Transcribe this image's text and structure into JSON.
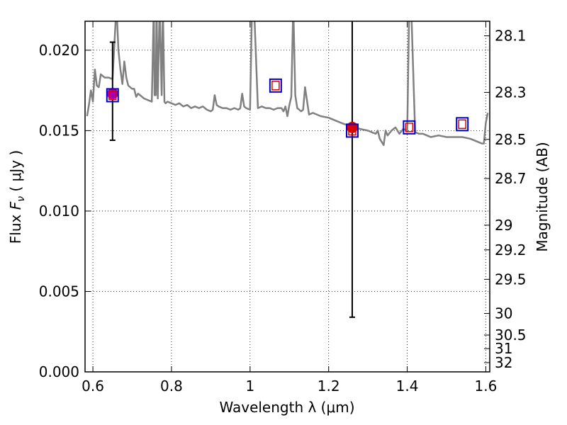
{
  "chart_data": {
    "type": "line",
    "title": "",
    "xlabel": "Wavelength  λ (μm)",
    "ylabel": "Flux  F_ν  ( μJy )",
    "ylabel_parts": {
      "pre": "Flux  ",
      "var": "F",
      "sub": "ν",
      "post": "  ( μJy )"
    },
    "y2label": "Magnitude (AB)",
    "xlim": [
      0.58,
      1.61
    ],
    "ylim": [
      0.0,
      0.0218
    ],
    "grid": true,
    "x_ticks": [
      0.6,
      0.8,
      1.0,
      1.2,
      1.4,
      1.6
    ],
    "x_tick_labels": [
      "0.6",
      "0.8",
      "1",
      "1.2",
      "1.4",
      "1.6"
    ],
    "y_ticks": [
      0.0,
      0.005,
      0.01,
      0.015,
      0.02
    ],
    "y_tick_labels": [
      "0.000",
      "0.005",
      "0.010",
      "0.015",
      "0.020"
    ],
    "mag_ticks": [
      28.1,
      28.3,
      28.5,
      28.7,
      29,
      29.2,
      29.5,
      30,
      30.5,
      31,
      32
    ],
    "mag_tick_labels": [
      "28.1",
      "28.3",
      "28.5",
      "28.7",
      "29",
      "29.2",
      "29.5",
      "30",
      "30.5",
      "31",
      "32"
    ],
    "colors": {
      "sed": "#808080",
      "observed": "#dd0000",
      "marker_box": "#0000cc",
      "model": "#dd0000",
      "errorbar": "#000000",
      "purple_point": "#aa00aa"
    },
    "series": [
      {
        "kind": "sed_line",
        "x": [
          0.585,
          0.59,
          0.595,
          0.6,
          0.605,
          0.61,
          0.615,
          0.62,
          0.63,
          0.64,
          0.65,
          0.66,
          0.665,
          0.67,
          0.675,
          0.68,
          0.685,
          0.69,
          0.7,
          0.705,
          0.71,
          0.715,
          0.72,
          0.725,
          0.73,
          0.74,
          0.75,
          0.755,
          0.757,
          0.76,
          0.762,
          0.765,
          0.77,
          0.775,
          0.778,
          0.782,
          0.785,
          0.79,
          0.8,
          0.81,
          0.82,
          0.83,
          0.84,
          0.85,
          0.86,
          0.87,
          0.88,
          0.89,
          0.9,
          0.905,
          0.91,
          0.915,
          0.92,
          0.93,
          0.94,
          0.95,
          0.96,
          0.97,
          0.975,
          0.98,
          0.985,
          0.99,
          1.0,
          1.005,
          1.01,
          1.02,
          1.03,
          1.04,
          1.05,
          1.06,
          1.07,
          1.08,
          1.085,
          1.09,
          1.095,
          1.1,
          1.105,
          1.11,
          1.115,
          1.12,
          1.13,
          1.135,
          1.14,
          1.15,
          1.16,
          1.18,
          1.2,
          1.22,
          1.24,
          1.26,
          1.28,
          1.3,
          1.31,
          1.32,
          1.325,
          1.33,
          1.34,
          1.345,
          1.35,
          1.36,
          1.37,
          1.38,
          1.39,
          1.4,
          1.405,
          1.41,
          1.42,
          1.43,
          1.44,
          1.45,
          1.46,
          1.48,
          1.5,
          1.52,
          1.54,
          1.56,
          1.58,
          1.59,
          1.595,
          1.6,
          1.605
        ],
        "y": [
          0.0159,
          0.0166,
          0.0175,
          0.0168,
          0.0188,
          0.0178,
          0.0177,
          0.0185,
          0.0183,
          0.0183,
          0.0182,
          0.0228,
          0.02,
          0.0188,
          0.0179,
          0.0193,
          0.0183,
          0.0178,
          0.0176,
          0.0176,
          0.0171,
          0.0173,
          0.0172,
          0.0171,
          0.017,
          0.0169,
          0.0168,
          0.0228,
          0.0172,
          0.0172,
          0.0228,
          0.017,
          0.0228,
          0.0172,
          0.0228,
          0.0168,
          0.0167,
          0.0168,
          0.0167,
          0.0166,
          0.0167,
          0.0165,
          0.0166,
          0.0164,
          0.0165,
          0.0164,
          0.0165,
          0.0163,
          0.0162,
          0.0163,
          0.0172,
          0.0166,
          0.0165,
          0.0164,
          0.0164,
          0.0163,
          0.0164,
          0.0163,
          0.0164,
          0.0173,
          0.0165,
          0.0164,
          0.0163,
          0.0228,
          0.0228,
          0.0164,
          0.0165,
          0.0164,
          0.0164,
          0.0163,
          0.0164,
          0.0164,
          0.0162,
          0.0165,
          0.0159,
          0.0166,
          0.0171,
          0.0228,
          0.0172,
          0.0164,
          0.0162,
          0.0163,
          0.0177,
          0.016,
          0.0161,
          0.0159,
          0.0158,
          0.0156,
          0.0154,
          0.0153,
          0.0151,
          0.015,
          0.0149,
          0.0148,
          0.015,
          0.0145,
          0.0141,
          0.015,
          0.0147,
          0.015,
          0.0152,
          0.0148,
          0.0151,
          0.015,
          0.0228,
          0.0228,
          0.0149,
          0.0148,
          0.0148,
          0.0147,
          0.0146,
          0.0147,
          0.0146,
          0.0146,
          0.0146,
          0.0145,
          0.0143,
          0.0142,
          0.0142,
          0.0155,
          0.0161
        ]
      },
      {
        "kind": "observed_points",
        "name": "",
        "points": [
          {
            "x": 0.65,
            "y": 0.0173,
            "yerr_low": 0.0144,
            "yerr_high": 0.0205,
            "color": "#aa00aa"
          },
          {
            "x": 1.26,
            "y": 0.0152,
            "yerr_low": 0.0034,
            "yerr_high": 0.0228,
            "color": "#dd0000"
          }
        ]
      },
      {
        "kind": "model_boxes",
        "points": [
          {
            "x": 0.65,
            "y": 0.0172
          },
          {
            "x": 1.065,
            "y": 0.0178
          },
          {
            "x": 1.26,
            "y": 0.015
          },
          {
            "x": 1.405,
            "y": 0.0152
          },
          {
            "x": 1.54,
            "y": 0.0154
          }
        ]
      }
    ]
  }
}
